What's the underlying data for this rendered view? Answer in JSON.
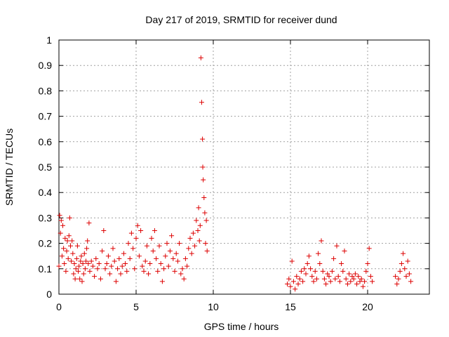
{
  "chart_data": {
    "type": "scatter",
    "title": "Day 217 of 2019, SRMTID for receiver dund",
    "xlabel": "GPS time / hours",
    "ylabel": "SRMTID / TECUs",
    "xlim": [
      0,
      24
    ],
    "ylim": [
      0,
      1
    ],
    "xticks": [
      0,
      5,
      10,
      15,
      20
    ],
    "yticks": [
      0,
      0.1,
      0.2,
      0.3,
      0.4,
      0.5,
      0.6,
      0.7,
      0.8,
      0.9,
      1
    ],
    "ytick_labels": [
      "0",
      "0.1",
      "0.2",
      "0.3",
      "0.4",
      "0.5",
      "0.6",
      "0.7",
      "0.8",
      "0.9",
      "1"
    ],
    "grid": true,
    "marker": "+",
    "colors": {
      "series": "#dd0000",
      "grid": "#a0a0a0",
      "axis": "#000000"
    },
    "series": [
      {
        "points": [
          [
            0.0,
            0.11
          ],
          [
            0.05,
            0.31
          ],
          [
            0.1,
            0.24
          ],
          [
            0.15,
            0.29
          ],
          [
            0.2,
            0.15
          ],
          [
            0.25,
            0.27
          ],
          [
            0.3,
            0.18
          ],
          [
            0.35,
            0.12
          ],
          [
            0.4,
            0.22
          ],
          [
            0.45,
            0.09
          ],
          [
            0.5,
            0.17
          ],
          [
            0.55,
            0.21
          ],
          [
            0.6,
            0.14
          ],
          [
            0.65,
            0.23
          ],
          [
            0.7,
            0.3
          ],
          [
            0.75,
            0.19
          ],
          [
            0.8,
            0.13
          ],
          [
            0.85,
            0.21
          ],
          [
            0.9,
            0.16
          ],
          [
            0.95,
            0.08
          ],
          [
            1.0,
            0.12
          ],
          [
            1.05,
            0.06
          ],
          [
            1.1,
            0.1
          ],
          [
            1.15,
            0.14
          ],
          [
            1.2,
            0.19
          ],
          [
            1.25,
            0.09
          ],
          [
            1.3,
            0.11
          ],
          [
            1.35,
            0.06
          ],
          [
            1.4,
            0.13
          ],
          [
            1.45,
            0.15
          ],
          [
            1.5,
            0.05
          ],
          [
            1.55,
            0.12
          ],
          [
            1.6,
            0.08
          ],
          [
            1.65,
            0.16
          ],
          [
            1.7,
            0.1
          ],
          [
            1.75,
            0.13
          ],
          [
            1.8,
            0.18
          ],
          [
            1.85,
            0.21
          ],
          [
            1.9,
            0.12
          ],
          [
            1.95,
            0.28
          ],
          [
            2.0,
            0.09
          ],
          [
            2.1,
            0.13
          ],
          [
            2.2,
            0.11
          ],
          [
            2.3,
            0.07
          ],
          [
            2.4,
            0.14
          ],
          [
            2.5,
            0.1
          ],
          [
            2.6,
            0.12
          ],
          [
            2.7,
            0.06
          ],
          [
            2.8,
            0.17
          ],
          [
            2.9,
            0.25
          ],
          [
            3.0,
            0.1
          ],
          [
            3.1,
            0.12
          ],
          [
            3.2,
            0.15
          ],
          [
            3.3,
            0.08
          ],
          [
            3.4,
            0.11
          ],
          [
            3.5,
            0.18
          ],
          [
            3.6,
            0.13
          ],
          [
            3.7,
            0.05
          ],
          [
            3.8,
            0.1
          ],
          [
            3.9,
            0.14
          ],
          [
            4.0,
            0.08
          ],
          [
            4.1,
            0.11
          ],
          [
            4.2,
            0.16
          ],
          [
            4.3,
            0.12
          ],
          [
            4.4,
            0.09
          ],
          [
            4.5,
            0.2
          ],
          [
            4.6,
            0.14
          ],
          [
            4.7,
            0.24
          ],
          [
            4.8,
            0.18
          ],
          [
            4.9,
            0.1
          ],
          [
            5.0,
            0.22
          ],
          [
            5.1,
            0.27
          ],
          [
            5.2,
            0.15
          ],
          [
            5.3,
            0.25
          ],
          [
            5.4,
            0.11
          ],
          [
            5.5,
            0.09
          ],
          [
            5.6,
            0.13
          ],
          [
            5.7,
            0.19
          ],
          [
            5.8,
            0.08
          ],
          [
            5.9,
            0.12
          ],
          [
            6.0,
            0.22
          ],
          [
            6.1,
            0.17
          ],
          [
            6.2,
            0.25
          ],
          [
            6.3,
            0.14
          ],
          [
            6.4,
            0.09
          ],
          [
            6.5,
            0.19
          ],
          [
            6.6,
            0.12
          ],
          [
            6.7,
            0.05
          ],
          [
            6.8,
            0.1
          ],
          [
            6.9,
            0.15
          ],
          [
            7.0,
            0.2
          ],
          [
            7.1,
            0.11
          ],
          [
            7.2,
            0.17
          ],
          [
            7.3,
            0.23
          ],
          [
            7.4,
            0.14
          ],
          [
            7.5,
            0.09
          ],
          [
            7.6,
            0.16
          ],
          [
            7.7,
            0.13
          ],
          [
            7.8,
            0.2
          ],
          [
            7.9,
            0.08
          ],
          [
            8.0,
            0.1
          ],
          [
            8.1,
            0.06
          ],
          [
            8.2,
            0.14
          ],
          [
            8.3,
            0.11
          ],
          [
            8.4,
            0.18
          ],
          [
            8.5,
            0.22
          ],
          [
            8.6,
            0.16
          ],
          [
            8.7,
            0.24
          ],
          [
            8.8,
            0.19
          ],
          [
            8.9,
            0.29
          ],
          [
            9.0,
            0.25
          ],
          [
            9.05,
            0.34
          ],
          [
            9.1,
            0.21
          ],
          [
            9.15,
            0.27
          ],
          [
            9.2,
            0.93
          ],
          [
            9.25,
            0.755
          ],
          [
            9.3,
            0.61
          ],
          [
            9.32,
            0.5
          ],
          [
            9.35,
            0.45
          ],
          [
            9.4,
            0.38
          ],
          [
            9.45,
            0.32
          ],
          [
            9.5,
            0.2
          ],
          [
            9.55,
            0.29
          ],
          [
            9.6,
            0.17
          ],
          [
            14.8,
            0.04
          ],
          [
            14.9,
            0.06
          ],
          [
            15.0,
            0.03
          ],
          [
            15.1,
            0.13
          ],
          [
            15.2,
            0.05
          ],
          [
            15.3,
            0.02
          ],
          [
            15.4,
            0.07
          ],
          [
            15.5,
            0.04
          ],
          [
            15.6,
            0.06
          ],
          [
            15.7,
            0.09
          ],
          [
            15.8,
            0.05
          ],
          [
            15.9,
            0.1
          ],
          [
            16.0,
            0.08
          ],
          [
            16.1,
            0.12
          ],
          [
            16.2,
            0.15
          ],
          [
            16.3,
            0.1
          ],
          [
            16.4,
            0.07
          ],
          [
            16.5,
            0.05
          ],
          [
            16.6,
            0.09
          ],
          [
            16.7,
            0.06
          ],
          [
            16.8,
            0.16
          ],
          [
            16.9,
            0.12
          ],
          [
            17.0,
            0.21
          ],
          [
            17.1,
            0.09
          ],
          [
            17.2,
            0.06
          ],
          [
            17.3,
            0.04
          ],
          [
            17.4,
            0.08
          ],
          [
            17.5,
            0.07
          ],
          [
            17.6,
            0.05
          ],
          [
            17.7,
            0.09
          ],
          [
            17.8,
            0.14
          ],
          [
            17.9,
            0.06
          ],
          [
            18.0,
            0.19
          ],
          [
            18.1,
            0.07
          ],
          [
            18.2,
            0.05
          ],
          [
            18.3,
            0.12
          ],
          [
            18.4,
            0.09
          ],
          [
            18.5,
            0.17
          ],
          [
            18.6,
            0.06
          ],
          [
            18.7,
            0.04
          ],
          [
            18.8,
            0.08
          ],
          [
            18.9,
            0.05
          ],
          [
            19.0,
            0.07
          ],
          [
            19.1,
            0.06
          ],
          [
            19.2,
            0.08
          ],
          [
            19.3,
            0.04
          ],
          [
            19.4,
            0.07
          ],
          [
            19.5,
            0.05
          ],
          [
            19.6,
            0.06
          ],
          [
            19.7,
            0.03
          ],
          [
            19.8,
            0.05
          ],
          [
            19.9,
            0.09
          ],
          [
            20.0,
            0.12
          ],
          [
            20.1,
            0.18
          ],
          [
            20.2,
            0.07
          ],
          [
            20.3,
            0.05
          ],
          [
            21.8,
            0.07
          ],
          [
            21.9,
            0.04
          ],
          [
            22.0,
            0.06
          ],
          [
            22.1,
            0.09
          ],
          [
            22.2,
            0.12
          ],
          [
            22.3,
            0.16
          ],
          [
            22.4,
            0.1
          ],
          [
            22.5,
            0.07
          ],
          [
            22.6,
            0.13
          ],
          [
            22.7,
            0.08
          ],
          [
            22.8,
            0.05
          ]
        ]
      }
    ]
  }
}
